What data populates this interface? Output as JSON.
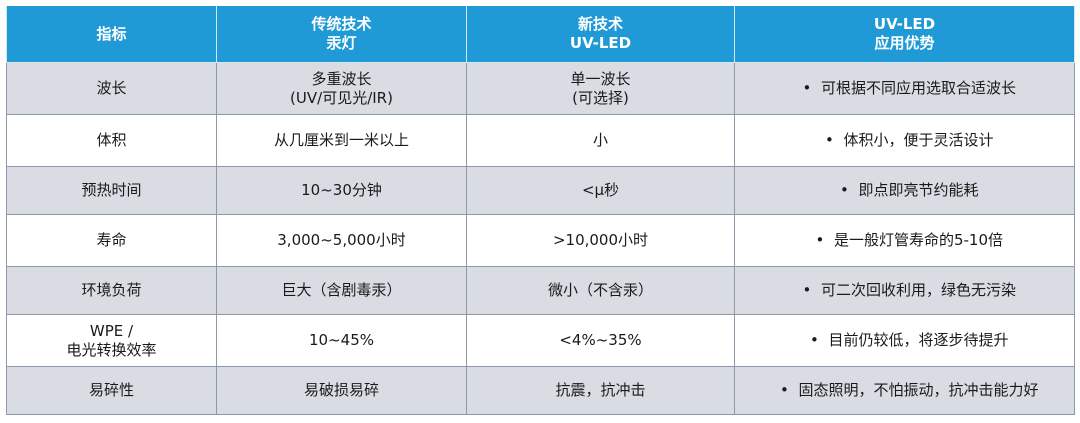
{
  "header": {
    "col1": "指标",
    "col2_line1": "传统技术",
    "col2_line2": "汞灯",
    "col3_line1": "新技术",
    "col3_line2": "UV-LED",
    "col4_line1": "UV-LED",
    "col4_line2": "应用优势"
  },
  "rows": [
    {
      "metric": "波长",
      "traditional_line1": "多重波长",
      "traditional_line2": "(UV/可见光/IR)",
      "new_line1": "单一波长",
      "new_line2": "(可选择)",
      "advantage": "可根据不同应用选取合适波长"
    },
    {
      "metric": "体积",
      "traditional": "从几厘米到一米以上",
      "new": "小",
      "advantage": "体积小，便于灵活设计"
    },
    {
      "metric": "预热时间",
      "traditional": "10~30分钟",
      "new": "<μ秒",
      "advantage": "即点即亮节约能耗"
    },
    {
      "metric": "寿命",
      "traditional": "3,000~5,000小时",
      "new": ">10,000小时",
      "advantage": "是一般灯管寿命的5-10倍"
    },
    {
      "metric": "环境负荷",
      "traditional": "巨大（含剧毒汞）",
      "new": "微小（不含汞）",
      "advantage": "可二次回收利用，绿色无污染"
    },
    {
      "metric_line1": "WPE /",
      "metric_line2": "电光转换效率",
      "traditional": "10~45%",
      "new": "<4%~35%",
      "advantage": "目前仍较低，将逐步待提升"
    },
    {
      "metric": "易碎性",
      "traditional": "易破损易碎",
      "new": "抗震，抗冲击",
      "advantage": "固态照明，不怕振动，抗冲击能力好"
    }
  ],
  "bullet_char": "•",
  "colors": {
    "header_bg": "#1f9ad6",
    "row_alt_bg": "#d9dde3",
    "border": "#8c99a8"
  }
}
